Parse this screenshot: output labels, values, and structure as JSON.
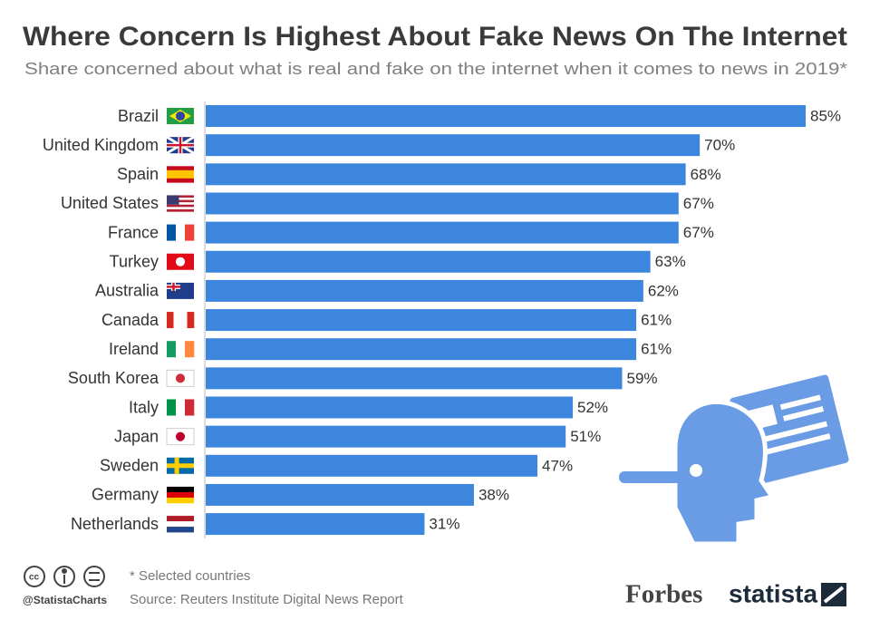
{
  "chart_data": {
    "type": "bar",
    "orientation": "horizontal",
    "title": "Where Concern Is Highest About Fake News On The Internet",
    "subtitle": "Share concerned about what is real and fake on the internet when it comes to news in 2019*",
    "categories": [
      "Brazil",
      "United Kingdom",
      "Spain",
      "United States",
      "France",
      "Turkey",
      "Australia",
      "Canada",
      "Ireland",
      "South Korea",
      "Italy",
      "Japan",
      "Sweden",
      "Germany",
      "Netherlands"
    ],
    "values": [
      85,
      70,
      68,
      67,
      67,
      63,
      62,
      61,
      61,
      59,
      52,
      51,
      47,
      38,
      31
    ],
    "value_labels": [
      "85%",
      "70%",
      "68%",
      "67%",
      "67%",
      "63%",
      "62%",
      "61%",
      "61%",
      "59%",
      "52%",
      "51%",
      "47%",
      "38%",
      "31%"
    ],
    "color": "#3d86de",
    "xlim": [
      0,
      85
    ],
    "note": "* Selected countries",
    "source": "Source: Reuters Institute Digital News Report",
    "handle": "@StatistaCharts",
    "partner": "Forbes",
    "brand": "statista"
  }
}
